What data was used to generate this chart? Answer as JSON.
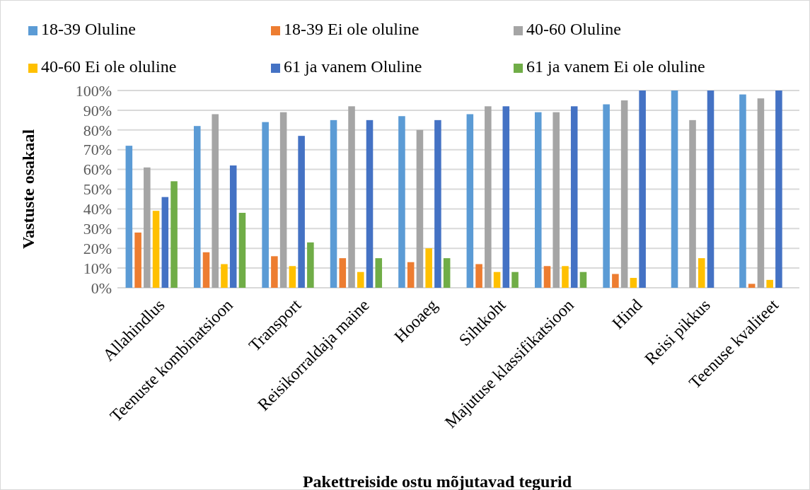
{
  "chart_data": {
    "type": "bar",
    "xlabel": "Pakettreiside ostu mõjutavad tegurid",
    "ylabel": "Vastuste osakaal",
    "categories": [
      "Allahindlus",
      "Teenuste kombinatsioon",
      "Transport",
      "Reisikorraldaja maine",
      "Hooaeg",
      "Sihtkoht",
      "Majutuse klassifikatsioon",
      "Hind",
      "Reisi pikkus",
      "Teenuse kvaliteet"
    ],
    "series": [
      {
        "name": "18-39 Oluline",
        "color": "#5b9bd5",
        "values": [
          72,
          82,
          84,
          85,
          87,
          88,
          89,
          93,
          100,
          98
        ]
      },
      {
        "name": "18-39 Ei ole oluline",
        "color": "#ed7d31",
        "values": [
          28,
          18,
          16,
          15,
          13,
          12,
          11,
          7,
          0,
          2
        ]
      },
      {
        "name": "40-60 Oluline",
        "color": "#a5a5a5",
        "values": [
          61,
          88,
          89,
          92,
          80,
          92,
          89,
          95,
          85,
          96
        ]
      },
      {
        "name": "40-60 Ei ole oluline",
        "color": "#ffc000",
        "values": [
          39,
          12,
          11,
          8,
          20,
          8,
          11,
          5,
          15,
          4
        ]
      },
      {
        "name": "61 ja vanem Oluline",
        "color": "#4472c4",
        "values": [
          46,
          62,
          77,
          85,
          85,
          92,
          92,
          100,
          100,
          100
        ]
      },
      {
        "name": "61 ja vanem Ei ole oluline",
        "color": "#70ad47",
        "values": [
          54,
          38,
          23,
          15,
          15,
          8,
          8,
          0,
          0,
          0
        ]
      }
    ],
    "ylim": [
      0,
      100
    ],
    "yticks": [
      {
        "value": 0,
        "label": "0%"
      },
      {
        "value": 10,
        "label": "10%"
      },
      {
        "value": 20,
        "label": "20%"
      },
      {
        "value": 30,
        "label": "30%"
      },
      {
        "value": 40,
        "label": "40%"
      },
      {
        "value": 50,
        "label": "50%"
      },
      {
        "value": 60,
        "label": "60%"
      },
      {
        "value": 70,
        "label": "70%"
      },
      {
        "value": 80,
        "label": "80%"
      },
      {
        "value": 90,
        "label": "90%"
      },
      {
        "value": 100,
        "label": "100%"
      }
    ],
    "grid": "y",
    "legend": "top"
  }
}
